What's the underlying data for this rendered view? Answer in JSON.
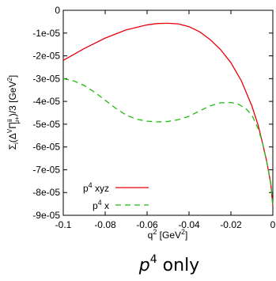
{
  "chart_data": {
    "type": "line",
    "xlabel": "q² [GeV²]",
    "ylabel": "Σᵢ(Δ^V Π^{ii}_{μ+})/3 [GeV²]",
    "xlim": [
      -0.1,
      0
    ],
    "ylim": [
      -9e-05,
      0
    ],
    "x_ticks": [
      "-0.1",
      "-0.08",
      "-0.06",
      "-0.04",
      "-0.02",
      "0"
    ],
    "y_ticks": [
      "0",
      "-1e-05",
      "-2e-05",
      "-3e-05",
      "-4e-05",
      "-5e-05",
      "-6e-05",
      "-7e-05",
      "-8e-05",
      "-9e-05"
    ],
    "grid": false,
    "legend_position": "bottom-left",
    "series": [
      {
        "name": "p⁴ xyz",
        "color": "#e8000b",
        "dash": "solid",
        "points": [
          [
            -0.1,
            -2.2e-05
          ],
          [
            -0.09,
            -1.68e-05
          ],
          [
            -0.08,
            -1.22e-05
          ],
          [
            -0.07,
            -8.6e-06
          ],
          [
            -0.06,
            -6.4e-06
          ],
          [
            -0.055,
            -5.8e-06
          ],
          [
            -0.05,
            -5.7e-06
          ],
          [
            -0.045,
            -6e-06
          ],
          [
            -0.04,
            -7.2e-06
          ],
          [
            -0.035,
            -9.4e-06
          ],
          [
            -0.03,
            -1.28e-05
          ],
          [
            -0.025,
            -1.72e-05
          ],
          [
            -0.02,
            -2.3e-05
          ],
          [
            -0.015,
            -3.1e-05
          ],
          [
            -0.01,
            -4.2e-05
          ],
          [
            -0.007,
            -5.05e-05
          ],
          [
            -0.005,
            -5.8e-05
          ],
          [
            -0.003,
            -6.6e-05
          ],
          [
            -0.001,
            -7.6e-05
          ],
          [
            0,
            -8.6e-05
          ]
        ]
      },
      {
        "name": "p⁴ x",
        "color": "#22bb11",
        "dash": "dashed",
        "points": [
          [
            -0.1,
            -3e-05
          ],
          [
            -0.095,
            -3.1e-05
          ],
          [
            -0.09,
            -3.3e-05
          ],
          [
            -0.085,
            -3.6e-05
          ],
          [
            -0.08,
            -3.95e-05
          ],
          [
            -0.075,
            -4.3e-05
          ],
          [
            -0.07,
            -4.6e-05
          ],
          [
            -0.065,
            -4.78e-05
          ],
          [
            -0.06,
            -4.87e-05
          ],
          [
            -0.055,
            -4.9e-05
          ],
          [
            -0.05,
            -4.88e-05
          ],
          [
            -0.045,
            -4.8e-05
          ],
          [
            -0.04,
            -4.65e-05
          ],
          [
            -0.035,
            -4.42e-05
          ],
          [
            -0.03,
            -4.2e-05
          ],
          [
            -0.025,
            -4.06e-05
          ],
          [
            -0.02,
            -4.05e-05
          ],
          [
            -0.017,
            -4.1e-05
          ],
          [
            -0.013,
            -4.3e-05
          ],
          [
            -0.01,
            -4.6e-05
          ],
          [
            -0.007,
            -5.2e-05
          ],
          [
            -0.005,
            -5.8e-05
          ],
          [
            -0.003,
            -6.6e-05
          ],
          [
            -0.001,
            -7.6e-05
          ],
          [
            0,
            -8.6e-05
          ]
        ]
      }
    ]
  },
  "caption": {
    "base": "p",
    "exponent": "4",
    "rest": " only"
  }
}
